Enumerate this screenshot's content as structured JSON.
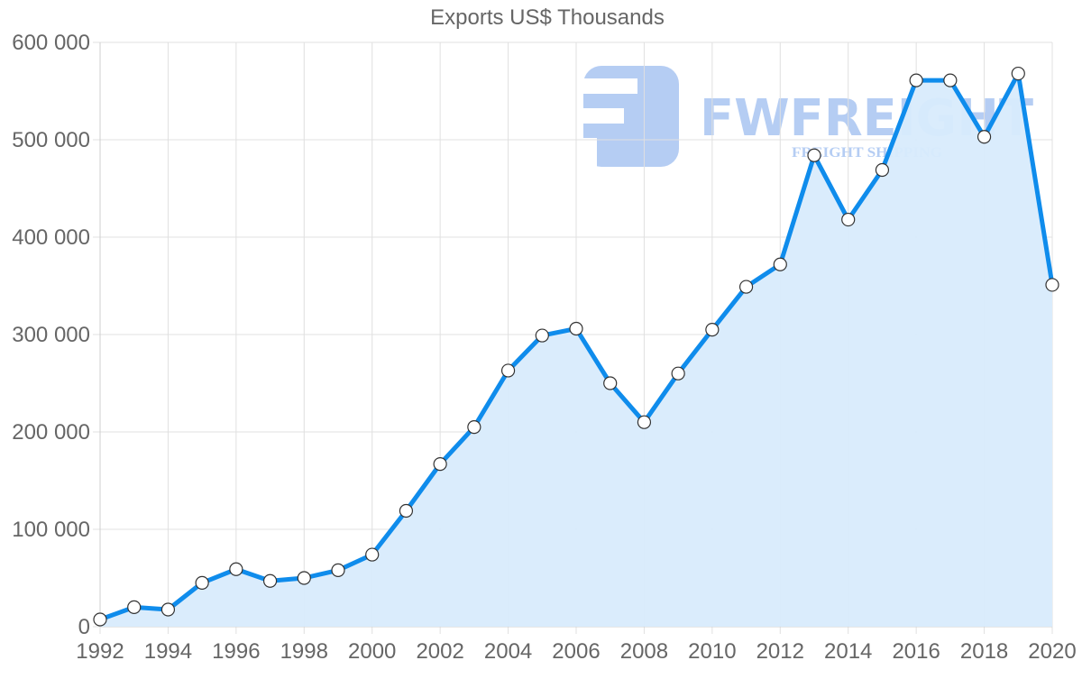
{
  "chart_data": {
    "type": "line",
    "title": "Exports US$ Thousands",
    "xlabel": "",
    "ylabel": "",
    "x": [
      1992,
      1993,
      1994,
      1995,
      1996,
      1997,
      1998,
      1999,
      2000,
      2001,
      2002,
      2003,
      2004,
      2005,
      2006,
      2007,
      2008,
      2009,
      2010,
      2011,
      2012,
      2013,
      2014,
      2015,
      2016,
      2017,
      2018,
      2019,
      2020
    ],
    "series": [
      {
        "name": "Exports US$ Thousands",
        "values": [
          7400,
          20000,
          17600,
          45000,
          59000,
          47000,
          50000,
          58000,
          74000,
          119000,
          167000,
          205000,
          263000,
          299000,
          306000,
          250000,
          210000,
          260000,
          305000,
          349000,
          372000,
          484000,
          418000,
          469000,
          561000,
          561000,
          503000,
          568000,
          351000
        ]
      }
    ],
    "xticks": [
      "1992",
      "1994",
      "1996",
      "1998",
      "2000",
      "2002",
      "2004",
      "2006",
      "2008",
      "2010",
      "2012",
      "2014",
      "2016",
      "2018",
      "2020"
    ],
    "yticks": [
      "0",
      "100 000",
      "200 000",
      "300 000",
      "400 000",
      "500 000",
      "600 000"
    ],
    "ylim": [
      0,
      600000
    ],
    "xlim": [
      1992,
      2020
    ],
    "grid": true,
    "fill": true,
    "legend": "none",
    "colors": {
      "line": "#0f8cec",
      "fill": "#d8ebfc",
      "point_fill": "#ffffff",
      "point_stroke": "#333333",
      "grid": "#e0e0e0",
      "text": "#666666"
    }
  },
  "watermark": {
    "brand": "FWFREIGHT",
    "tagline": "FREIGHT SHIPPING",
    "color": "#9dbdf0"
  }
}
